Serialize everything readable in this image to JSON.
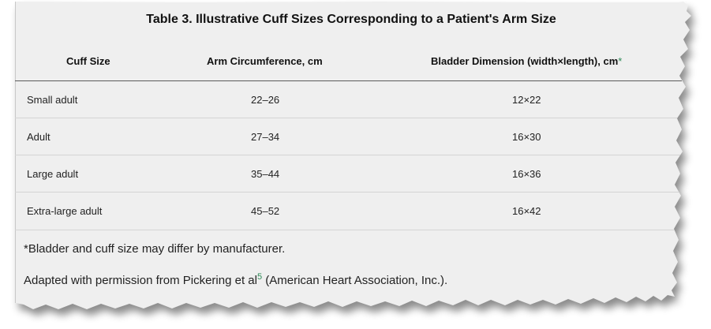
{
  "table": {
    "title": "Table 3. Illustrative Cuff Sizes Corresponding to a Patient's Arm Size",
    "columns": {
      "cuff_size": "Cuff Size",
      "arm_circumference": "Arm Circumference, cm",
      "bladder_dimension": "Bladder Dimension (width×length), cm",
      "bladder_dimension_marker": "*"
    },
    "rows": [
      {
        "cuff_size": "Small adult",
        "arm_circumference": "22–26",
        "bladder_dimension": "12×22"
      },
      {
        "cuff_size": "Adult",
        "arm_circumference": "27–34",
        "bladder_dimension": "16×30"
      },
      {
        "cuff_size": "Large adult",
        "arm_circumference": "35–44",
        "bladder_dimension": "16×36"
      },
      {
        "cuff_size": "Extra-large adult",
        "arm_circumference": "45–52",
        "bladder_dimension": "16×42"
      }
    ]
  },
  "footnotes": {
    "bladder_note": "*Bladder and cuff size may differ by manufacturer.",
    "adapted_prefix": "Adapted with permission from Pickering et al",
    "adapted_ref": "5",
    "adapted_suffix": " (American Heart Association, Inc.)."
  }
}
